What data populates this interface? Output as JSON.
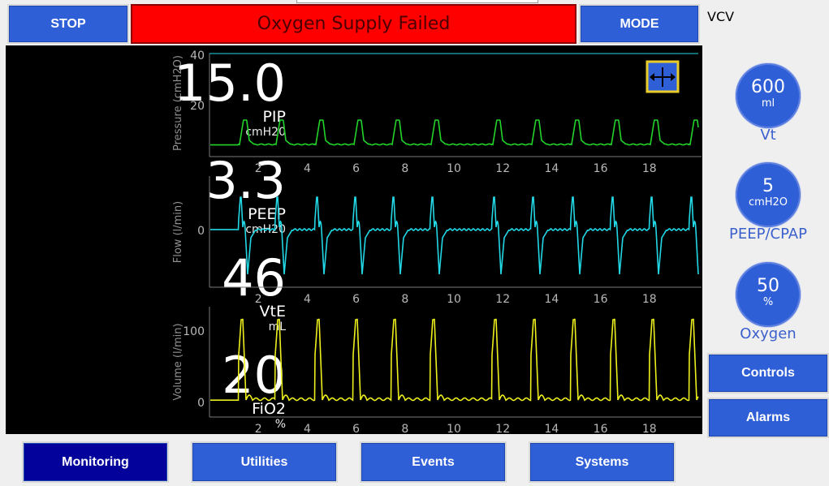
{
  "header": {
    "stop_label": "STOP",
    "alarm_text": "Oxygen Supply Failed",
    "mode_button_label": "MODE",
    "mode_value": "VCV"
  },
  "readouts": [
    {
      "value": "15.0",
      "label": "PIP",
      "unit": "cmH20"
    },
    {
      "value": "3.3",
      "label": "PEEP",
      "unit": "cmH20"
    },
    {
      "value": "46",
      "label": "VtE",
      "unit": "mL"
    },
    {
      "value": "20",
      "label": "FiO2",
      "unit": "%"
    }
  ],
  "graphs": {
    "pressure": {
      "ylabel": "Pressure (cmH2O)",
      "yticks": [
        "40",
        "20"
      ],
      "color": "#22d42a"
    },
    "flow": {
      "ylabel": "Flow (l/min)",
      "yticks": [
        "0"
      ],
      "color": "#22d8e6"
    },
    "volume": {
      "ylabel": "Volume (l/min)",
      "yticks": [
        "100",
        "0"
      ],
      "color": "#ecef1c"
    },
    "xticks": [
      "2",
      "4",
      "6",
      "8",
      "10",
      "12",
      "14",
      "16",
      "18"
    ],
    "freeze_icon": "freeze-cursor-icon"
  },
  "settings": [
    {
      "value": "600",
      "unit": "ml",
      "label": "Vt"
    },
    {
      "value": "5",
      "unit": "cmH2O",
      "label": "PEEP/CPAP"
    },
    {
      "value": "50",
      "unit": "%",
      "label": "Oxygen"
    }
  ],
  "side_buttons": {
    "controls": "Controls",
    "alarms": "Alarms"
  },
  "tabs": {
    "monitoring": "Monitoring",
    "utilities": "Utilities",
    "events": "Events",
    "systems": "Systems"
  },
  "colors": {
    "button_blue": "#2f5fd6",
    "active_tab": "#03039c",
    "alarm_red": "#ff0000"
  }
}
